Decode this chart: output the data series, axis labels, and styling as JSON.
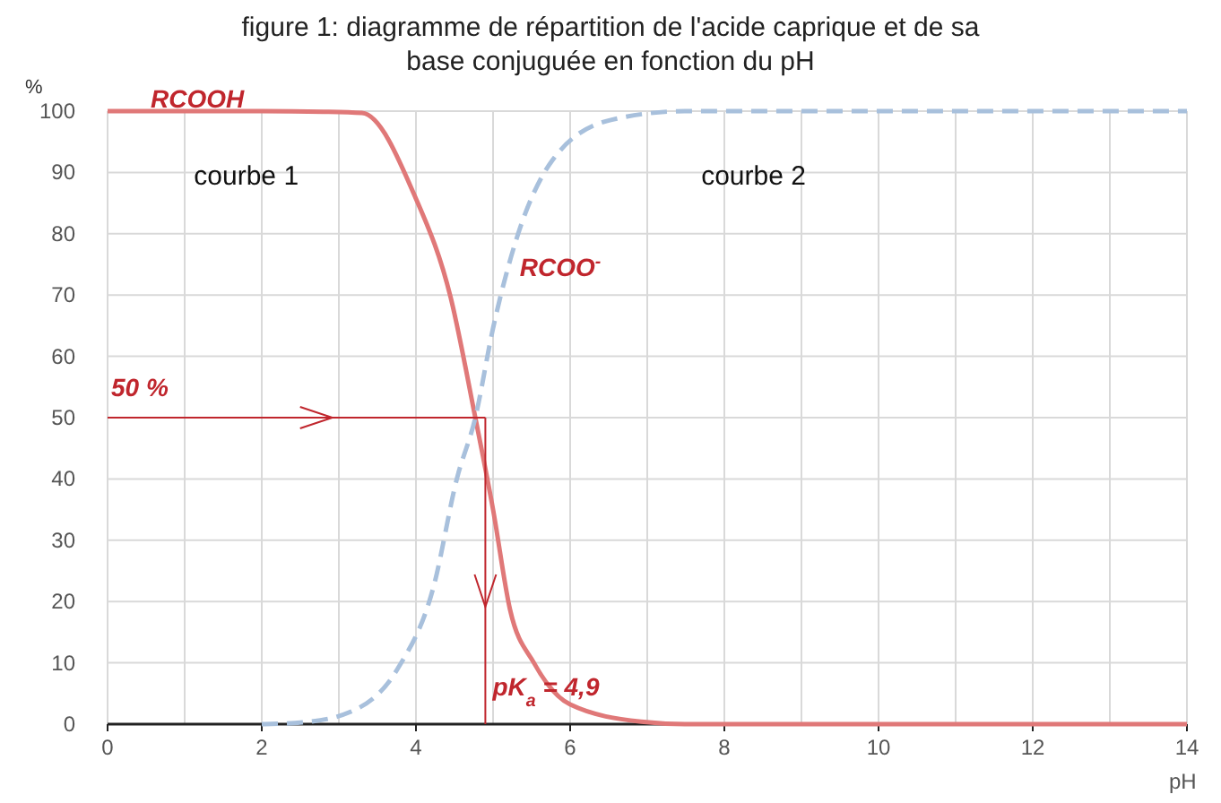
{
  "chart_data": {
    "type": "line",
    "title": "figure 1: diagramme de répartition de l'acide caprique et de sa base conjuguée en fonction du pH",
    "xlabel": "pH",
    "ylabel": "%",
    "xlim": [
      0,
      14
    ],
    "xticks": [
      0,
      {
        "value": 1,
        "label": null
      },
      2,
      {
        "value": 3,
        "label": null
      },
      4,
      {
        "value": 5,
        "label": null
      },
      6,
      {
        "value": 7,
        "label": null
      },
      8,
      {
        "value": 9,
        "label": null
      },
      10,
      {
        "value": 11,
        "label": null
      },
      12,
      {
        "value": 13,
        "label": null
      },
      14
    ],
    "ylim": [
      0,
      100
    ],
    "yticks": [
      0,
      10,
      20,
      30,
      40,
      50,
      60,
      70,
      80,
      90,
      100
    ],
    "grid": true,
    "marker": "none",
    "series": [
      {
        "name": "RCOOH",
        "color": "#e07878",
        "line_style": "solid",
        "x": [
          0,
          1,
          2,
          2.8,
          3.3,
          3.99,
          4.45,
          4.77,
          5.0,
          5.22,
          5.53,
          6.0,
          6.92,
          7.5,
          9,
          11,
          14
        ],
        "values": [
          100,
          100,
          100,
          99.9,
          99.7,
          86,
          69.6,
          50,
          35,
          18.7,
          10,
          3.2,
          0.4,
          0,
          0,
          0,
          0
        ]
      },
      {
        "name": "RCOO$^{-}$",
        "color": "#a8c0dc",
        "line_style": "dashed",
        "x": [
          2,
          2.53,
          3.15,
          3.76,
          4.23,
          4.53,
          4.77,
          5.0,
          5.3,
          5.77,
          6.54,
          7.5,
          9,
          11,
          14
        ],
        "values": [
          0,
          0.3,
          2,
          9,
          22.5,
          40,
          50,
          64.6,
          79,
          92,
          98.6,
          100,
          100,
          100,
          100
        ]
      }
    ],
    "ref_lines": [
      {
        "axis": "y",
        "value": 50,
        "label": "50 %",
        "color": "#c0262d"
      },
      {
        "axis": "x",
        "value": 4.9,
        "label": "pK$_{a}$ = 4,9",
        "color": "#c0262d"
      }
    ],
    "annotations": [
      "courbe 1",
      "courbe 2"
    ]
  }
}
